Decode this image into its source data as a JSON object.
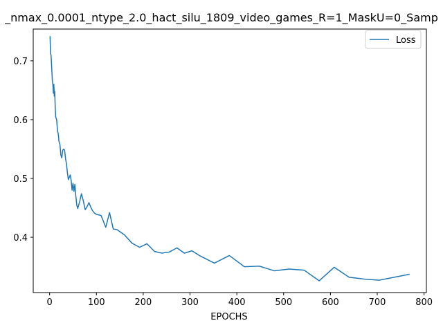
{
  "chart_data": {
    "type": "line",
    "title": "_nmax_0.0001_ntype_2.0_hact_silu_1809_video_games_R=1_MaskU=0_Samp",
    "xlabel": "EPOCHS",
    "ylabel": "",
    "xlim": [
      -35,
      805
    ],
    "ylim": [
      0.306,
      0.754
    ],
    "xticks": [
      0,
      100,
      200,
      300,
      400,
      500,
      600,
      700,
      800
    ],
    "yticks": [
      0.4,
      0.5,
      0.6,
      0.7
    ],
    "xtick_labels": [
      "0",
      "100",
      "200",
      "300",
      "400",
      "500",
      "600",
      "700",
      "800"
    ],
    "ytick_labels": [
      "0.4",
      "0.5",
      "0.6",
      "0.7"
    ],
    "grid": false,
    "legend_position": "top-right",
    "series": [
      {
        "name": "Loss",
        "color": "#1f77b4",
        "x": [
          1,
          2,
          3,
          4,
          5,
          6,
          7,
          8,
          9,
          10,
          11,
          12,
          13,
          14,
          15,
          16,
          17,
          18,
          19,
          20,
          22,
          24,
          26,
          28,
          30,
          32,
          34,
          36,
          38,
          40,
          42,
          44,
          46,
          48,
          50,
          52,
          54,
          56,
          58,
          60,
          64,
          68,
          72,
          76,
          80,
          84,
          88,
          92,
          96,
          100,
          105,
          110,
          120,
          128,
          136,
          144,
          160,
          176,
          192,
          208,
          224,
          240,
          256,
          272,
          288,
          304,
          320,
          352,
          384,
          416,
          448,
          480,
          512,
          544,
          576,
          608,
          640,
          672,
          704,
          736,
          768
        ],
        "y": [
          0.741,
          0.712,
          0.71,
          0.695,
          0.68,
          0.665,
          0.66,
          0.645,
          0.66,
          0.64,
          0.648,
          0.62,
          0.605,
          0.602,
          0.6,
          0.59,
          0.58,
          0.578,
          0.572,
          0.563,
          0.558,
          0.54,
          0.535,
          0.548,
          0.55,
          0.548,
          0.534,
          0.525,
          0.51,
          0.498,
          0.502,
          0.506,
          0.497,
          0.48,
          0.492,
          0.478,
          0.49,
          0.47,
          0.455,
          0.449,
          0.46,
          0.474,
          0.462,
          0.447,
          0.452,
          0.459,
          0.451,
          0.445,
          0.441,
          0.439,
          0.438,
          0.437,
          0.417,
          0.442,
          0.414,
          0.413,
          0.404,
          0.39,
          0.383,
          0.389,
          0.376,
          0.373,
          0.375,
          0.382,
          0.373,
          0.377,
          0.369,
          0.356,
          0.369,
          0.35,
          0.351,
          0.343,
          0.346,
          0.344,
          0.326,
          0.349,
          0.332,
          0.329,
          0.327,
          0.332,
          0.337
        ]
      }
    ]
  }
}
